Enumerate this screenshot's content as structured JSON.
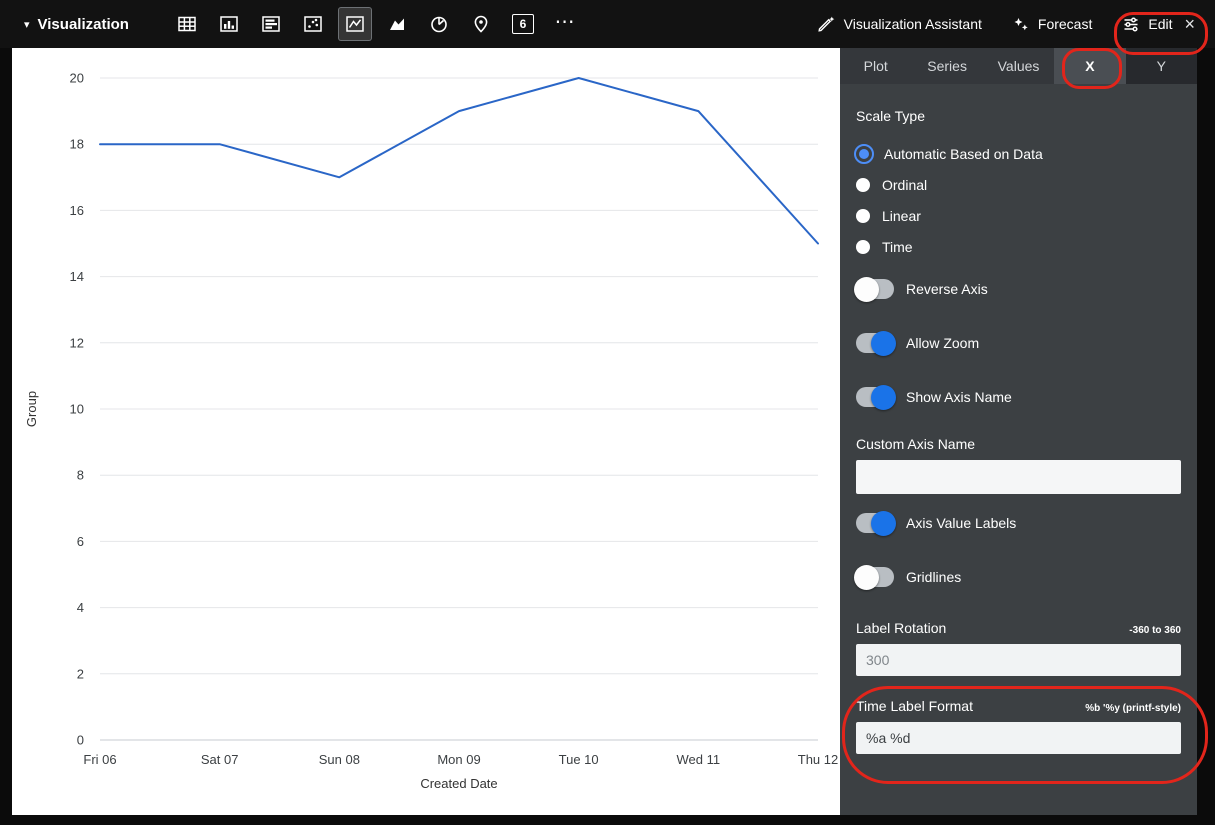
{
  "toolbar": {
    "title": "Visualization",
    "viz_type_icons": [
      "table",
      "column-chart",
      "bar-chart",
      "scatter",
      "line-chart",
      "area-chart",
      "pie-chart",
      "map-pin",
      "single-value",
      "more"
    ],
    "selected_viz_type": "line-chart",
    "single_value_glyph": "6",
    "more_glyph": "⋯",
    "caret_glyph": "▾",
    "assistant_label": "Visualization Assistant",
    "forecast_label": "Forecast",
    "edit_label": "Edit",
    "close_glyph": "×"
  },
  "panel": {
    "tabs": [
      {
        "label": "Plot",
        "active": false
      },
      {
        "label": "Series",
        "active": false
      },
      {
        "label": "Values",
        "active": false
      },
      {
        "label": "X",
        "active": true
      },
      {
        "label": "Y",
        "active": false
      }
    ],
    "scale_type": {
      "label": "Scale Type",
      "options": [
        {
          "label": "Automatic Based on Data",
          "selected": true
        },
        {
          "label": "Ordinal",
          "selected": false
        },
        {
          "label": "Linear",
          "selected": false
        },
        {
          "label": "Time",
          "selected": false
        }
      ]
    },
    "toggles": [
      {
        "label": "Reverse Axis",
        "on": false
      },
      {
        "label": "Allow Zoom",
        "on": true
      },
      {
        "label": "Show Axis Name",
        "on": true
      }
    ],
    "custom_axis_name": {
      "label": "Custom Axis Name",
      "value": "",
      "placeholder": ""
    },
    "toggles2": [
      {
        "label": "Axis Value Labels",
        "on": true
      },
      {
        "label": "Gridlines",
        "on": false
      }
    ],
    "label_rotation": {
      "label": "Label Rotation",
      "hint": "-360 to 360",
      "value": "300"
    },
    "time_label_format": {
      "label": "Time Label Format",
      "hint": "%b '%y (printf-style)",
      "value": "%a %d"
    }
  },
  "chart_data": {
    "type": "line",
    "x": [
      "Fri 06",
      "Sat 07",
      "Sun 08",
      "Mon 09",
      "Tue 10",
      "Wed 11",
      "Thu 12"
    ],
    "series": [
      {
        "name": "Group",
        "values": [
          18,
          18,
          17,
          19,
          20,
          19,
          15
        ]
      }
    ],
    "xlabel": "Created Date",
    "ylabel": "Group",
    "ylim": [
      0,
      20
    ],
    "ytick_step": 2,
    "grid": "horizontal",
    "legend": "none",
    "line_color": "#2a66c7"
  },
  "colors": {
    "accent_blue": "#1a73e8",
    "annotation_red": "#e2251b",
    "panel_bg": "#3c4043",
    "toolbar_bg": "#121212",
    "input_bg": "#f1f3f4",
    "gridline": "#e4e6e8"
  }
}
